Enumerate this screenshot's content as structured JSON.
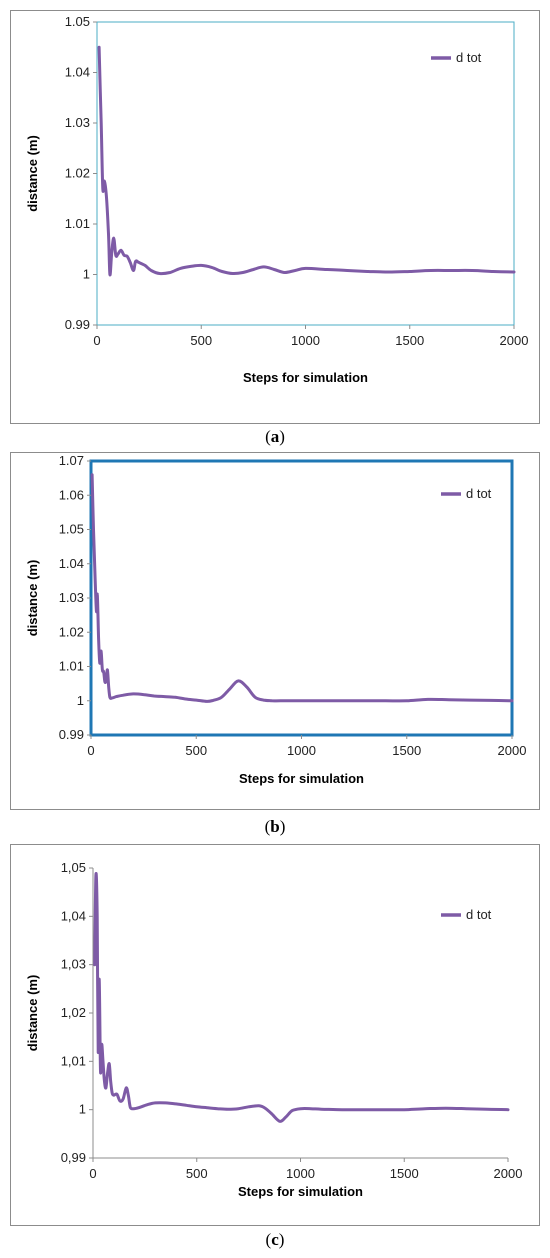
{
  "colors": {
    "series": "#7e5ba6",
    "frame_a": "#4bacc6",
    "frame_b": "#1f77b4",
    "axis": "#8c8c8c"
  },
  "charts": [
    {
      "caption": {
        "open": "(",
        "letter": "a",
        "close": ")"
      },
      "chart_data": {
        "type": "line",
        "xlabel": "Steps for simulation",
        "ylabel": "distance  (m)",
        "xlim": [
          0,
          2000
        ],
        "ylim": [
          0.99,
          1.05
        ],
        "x_ticks": [
          "0",
          "500",
          "1000",
          "1500",
          "2000"
        ],
        "y_ticks": [
          "0.99",
          "1",
          "1.01",
          "1.02",
          "1.03",
          "1.04",
          "1.05"
        ],
        "legend": "top-right",
        "series": [
          {
            "name": "d tot",
            "x": [
              10,
              20,
              28,
              35,
              45,
              55,
              62,
              70,
              80,
              90,
              100,
              115,
              130,
              145,
              160,
              175,
              185,
              200,
              230,
              260,
              300,
              350,
              400,
              450,
              500,
              550,
              600,
              650,
              700,
              750,
              800,
              850,
              900,
              950,
              1000,
              1100,
              1200,
              1300,
              1400,
              1500,
              1600,
              1700,
              1800,
              1900,
              2000
            ],
            "y": [
              1.045,
              1.03,
              1.017,
              1.0185,
              1.0155,
              1.008,
              1.0,
              1.004,
              1.0072,
              1.0038,
              1.004,
              1.0048,
              1.0038,
              1.0036,
              1.0023,
              1.0008,
              1.0026,
              1.0024,
              1.0018,
              1.0008,
              1.0002,
              1.0004,
              1.0012,
              1.0016,
              1.0018,
              1.0014,
              1.0006,
              1.0002,
              1.0004,
              1.001,
              1.0015,
              1.001,
              1.0004,
              1.0008,
              1.0012,
              1.001,
              1.0008,
              1.0006,
              1.0005,
              1.0006,
              1.0008,
              1.0008,
              1.0008,
              1.0006,
              1.0005
            ]
          }
        ]
      }
    },
    {
      "caption": {
        "open": "(",
        "letter": "b",
        "close": ")"
      },
      "chart_data": {
        "type": "line",
        "xlabel": "Steps for simulation",
        "ylabel": "distance  (m)",
        "xlim": [
          0,
          2000
        ],
        "ylim": [
          0.99,
          1.07
        ],
        "x_ticks": [
          "0",
          "500",
          "1000",
          "1500",
          "2000"
        ],
        "y_ticks": [
          "0.99",
          "1",
          "1.01",
          "1.02",
          "1.03",
          "1.04",
          "1.05",
          "1.06",
          "1.07"
        ],
        "legend": "top-right",
        "series": [
          {
            "name": "d tot",
            "x": [
              5,
              12,
              20,
              26,
              30,
              36,
              42,
              48,
              54,
              60,
              66,
              72,
              78,
              84,
              90,
              100,
              120,
              150,
              200,
              250,
              300,
              350,
              400,
              450,
              500,
              550,
              580,
              620,
              660,
              700,
              740,
              780,
              820,
              860,
              900,
              1000,
              1100,
              1200,
              1300,
              1400,
              1500,
              1600,
              1700,
              1800,
              1900,
              2000
            ],
            "y": [
              1.066,
              1.05,
              1.035,
              1.026,
              1.031,
              1.018,
              1.011,
              1.0145,
              1.009,
              1.0085,
              1.0055,
              1.006,
              1.009,
              1.004,
              1.001,
              1.0008,
              1.0012,
              1.0016,
              1.002,
              1.0018,
              1.0014,
              1.0012,
              1.001,
              1.0005,
              1.0002,
              0.9998,
              1.0001,
              1.001,
              1.0035,
              1.0058,
              1.004,
              1.001,
              1.0002,
              1.0,
              1.0,
              1.0,
              1.0,
              1.0,
              1.0,
              1.0,
              1.0,
              1.0004,
              1.0003,
              1.0002,
              1.0001,
              1.0
            ]
          }
        ]
      }
    },
    {
      "caption": {
        "open": "(",
        "letter": "c",
        "close": ")"
      },
      "chart_data": {
        "type": "line",
        "xlabel": "Steps for simulation",
        "ylabel": "distance  (m)",
        "xlim": [
          0,
          2000
        ],
        "ylim": [
          0.99,
          1.05
        ],
        "x_ticks": [
          "0",
          "500",
          "1000",
          "1500",
          "2000"
        ],
        "y_ticks": [
          "0,99",
          "1",
          "1,01",
          "1,02",
          "1,03",
          "1,04",
          "1,05"
        ],
        "legend": "top-right",
        "series": [
          {
            "name": "d tot",
            "x": [
              8,
              14,
              20,
              25,
              30,
              36,
              42,
              48,
              55,
              62,
              70,
              78,
              85,
              92,
              100,
              115,
              130,
              145,
              160,
              170,
              180,
              195,
              220,
              260,
              300,
              350,
              400,
              450,
              500,
              550,
              600,
              650,
              700,
              750,
              800,
              830,
              860,
              900,
              930,
              960,
              1000,
              1050,
              1100,
              1200,
              1300,
              1400,
              1500,
              1600,
              1700,
              1800,
              1900,
              2000
            ],
            "y": [
              1.03,
              1.0485,
              1.04,
              1.012,
              1.027,
              1.008,
              1.0135,
              1.01,
              1.006,
              1.0045,
              1.0075,
              1.0095,
              1.006,
              1.0035,
              1.003,
              1.0032,
              1.0018,
              1.0022,
              1.0045,
              1.003,
              1.0005,
              1.0002,
              1.0004,
              1.001,
              1.0014,
              1.0014,
              1.0012,
              1.0009,
              1.0006,
              1.0004,
              1.0002,
              1.0001,
              1.0002,
              1.0006,
              1.0008,
              1.0003,
              0.9992,
              0.9976,
              0.9985,
              0.9998,
              1.0002,
              1.0002,
              1.0001,
              1.0,
              1.0,
              1.0,
              1.0,
              1.0002,
              1.0003,
              1.0002,
              1.0001,
              1.0
            ]
          }
        ]
      }
    }
  ]
}
